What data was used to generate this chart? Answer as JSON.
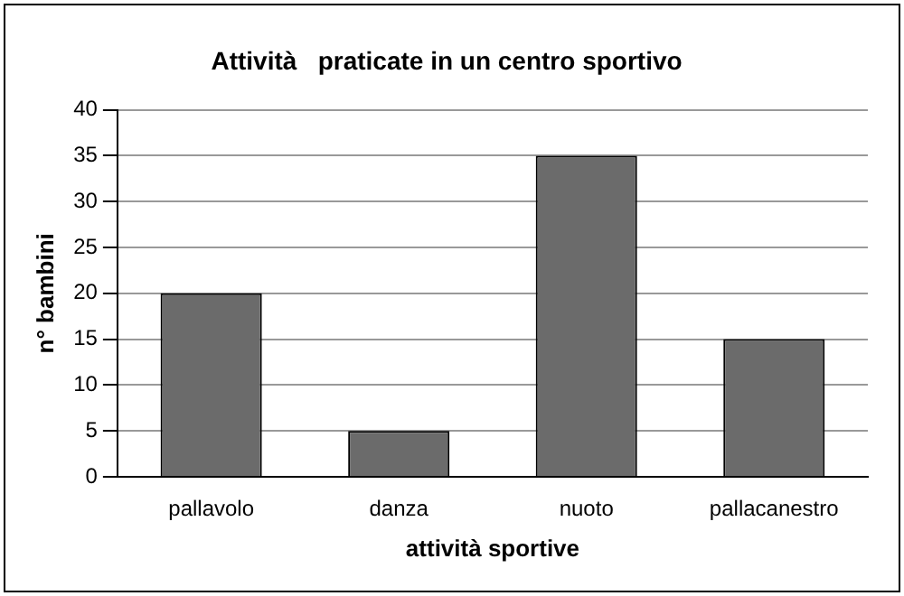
{
  "chart_data": {
    "type": "bar",
    "title": "Attività   praticate in un centro sportivo",
    "xlabel": "attività sportive",
    "ylabel": "n° bambini",
    "categories": [
      "pallavolo",
      "danza",
      "nuoto",
      "pallacanestro"
    ],
    "values": [
      20,
      5,
      35,
      15
    ],
    "color": "#6b6b6b",
    "ylim": [
      0,
      40
    ],
    "yticks": [
      0,
      5,
      10,
      15,
      20,
      25,
      30,
      35,
      40
    ],
    "grid": "y",
    "legend": false
  }
}
